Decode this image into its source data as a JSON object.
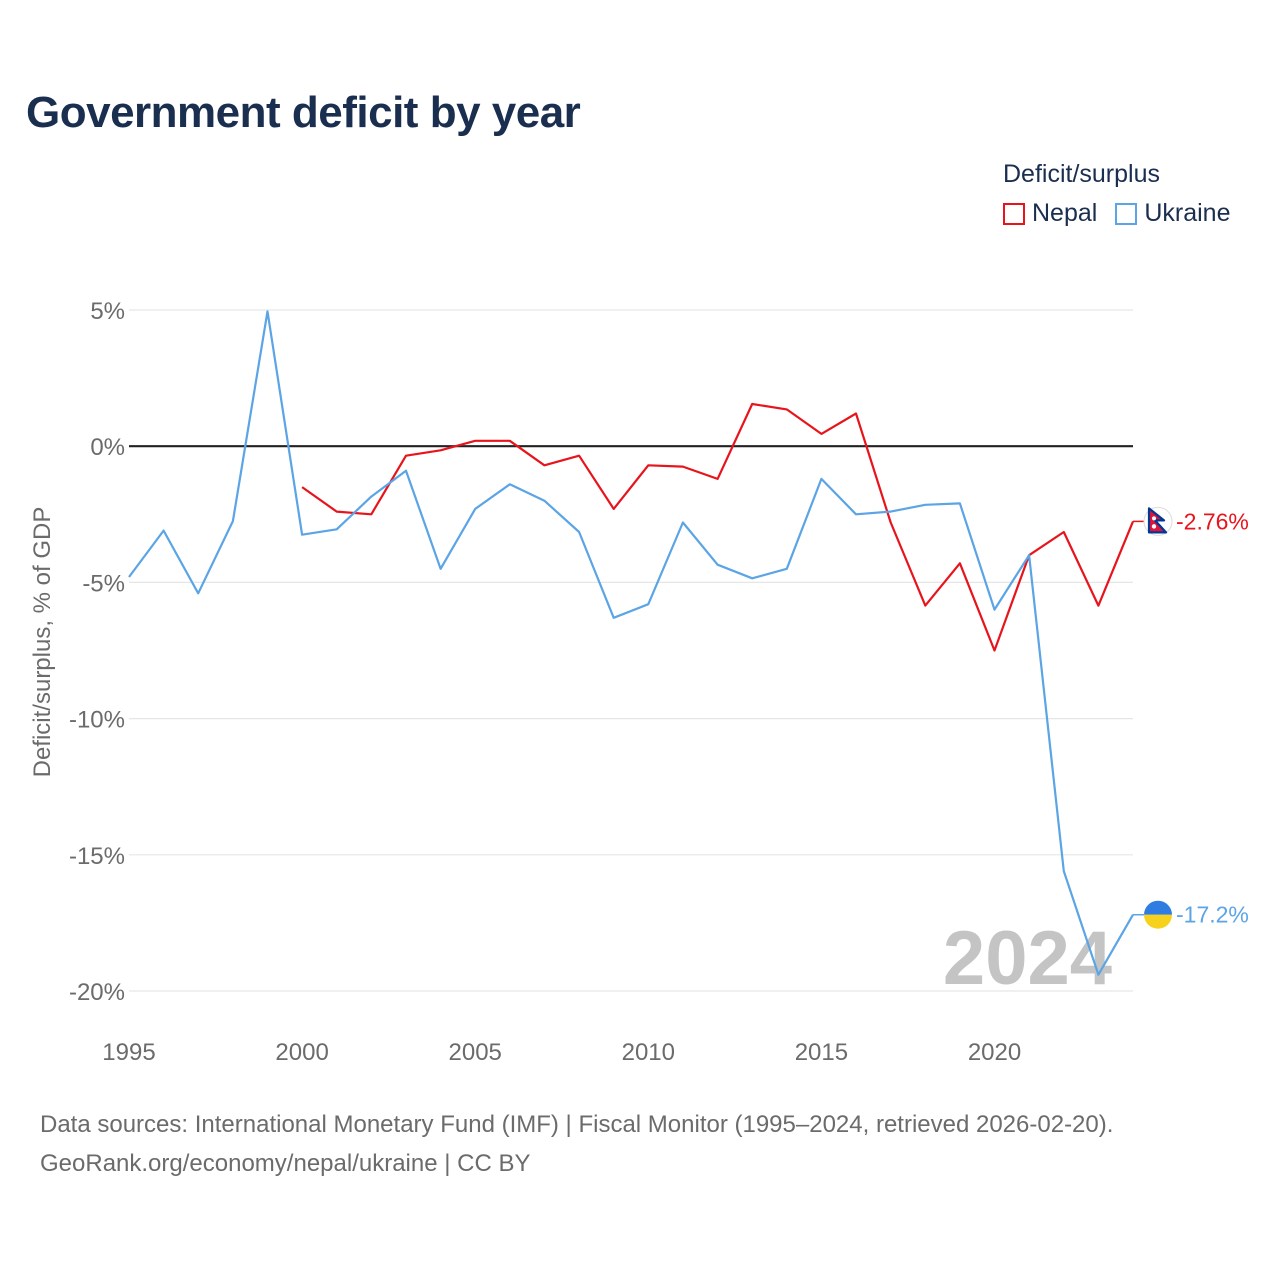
{
  "chart_data": {
    "type": "line",
    "title": "Government deficit by year",
    "xlabel": "",
    "ylabel": "Deficit/surplus, % of GDP",
    "xlim": [
      1995,
      2024
    ],
    "ylim": [
      -20,
      5
    ],
    "x_ticks": [
      1995,
      2000,
      2005,
      2010,
      2015,
      2020
    ],
    "x_tick_labels": [
      "1995",
      "2000",
      "2005",
      "2010",
      "2015",
      "2020"
    ],
    "y_ticks": [
      5,
      0,
      -5,
      -10,
      -15,
      -20
    ],
    "y_tick_labels": [
      "5%",
      "0%",
      "-5%",
      "-10%",
      "-15%",
      "-20%"
    ],
    "watermark_year": "2024",
    "legend_title": "Deficit/surplus",
    "series": [
      {
        "name": "Nepal",
        "color": "#e8141c",
        "end_label": "-2.76%",
        "end_icon": "nepal-flag-icon",
        "x": [
          2000,
          2001,
          2002,
          2003,
          2004,
          2005,
          2006,
          2007,
          2008,
          2009,
          2010,
          2011,
          2012,
          2013,
          2014,
          2015,
          2016,
          2017,
          2018,
          2019,
          2020,
          2021,
          2022,
          2023,
          2024
        ],
        "values": [
          -1.5,
          -2.4,
          -2.5,
          -0.35,
          -0.15,
          0.2,
          0.2,
          -0.7,
          -0.35,
          -2.3,
          -0.7,
          -0.75,
          -1.2,
          1.55,
          1.35,
          0.45,
          1.2,
          -2.8,
          -5.85,
          -4.3,
          -7.5,
          -4.0,
          -3.15,
          -5.85,
          -2.76
        ]
      },
      {
        "name": "Ukraine",
        "color": "#5ba4e5",
        "end_label": "-17.2%",
        "end_icon": "ukraine-flag-icon",
        "x": [
          1995,
          1996,
          1997,
          1998,
          1999,
          2000,
          2001,
          2002,
          2003,
          2004,
          2005,
          2006,
          2007,
          2008,
          2009,
          2010,
          2011,
          2012,
          2013,
          2014,
          2015,
          2016,
          2017,
          2018,
          2019,
          2020,
          2021,
          2022,
          2023,
          2024
        ],
        "values": [
          -4.8,
          -3.1,
          -5.4,
          -2.75,
          4.95,
          -3.25,
          -3.05,
          -1.85,
          -0.9,
          -4.5,
          -2.3,
          -1.4,
          -2.0,
          -3.15,
          -6.3,
          -5.8,
          -2.8,
          -4.35,
          -4.85,
          -4.5,
          -1.2,
          -2.5,
          -2.4,
          -2.15,
          -2.1,
          -6.0,
          -4.0,
          -15.6,
          -19.4,
          -17.2
        ]
      }
    ]
  },
  "footer": {
    "line1": "Data sources: International Monetary Fund (IMF) | Fiscal Monitor (1995–2024, retrieved 2026-02-20).",
    "line2": "GeoRank.org/economy/nepal/ukraine | CC BY"
  }
}
